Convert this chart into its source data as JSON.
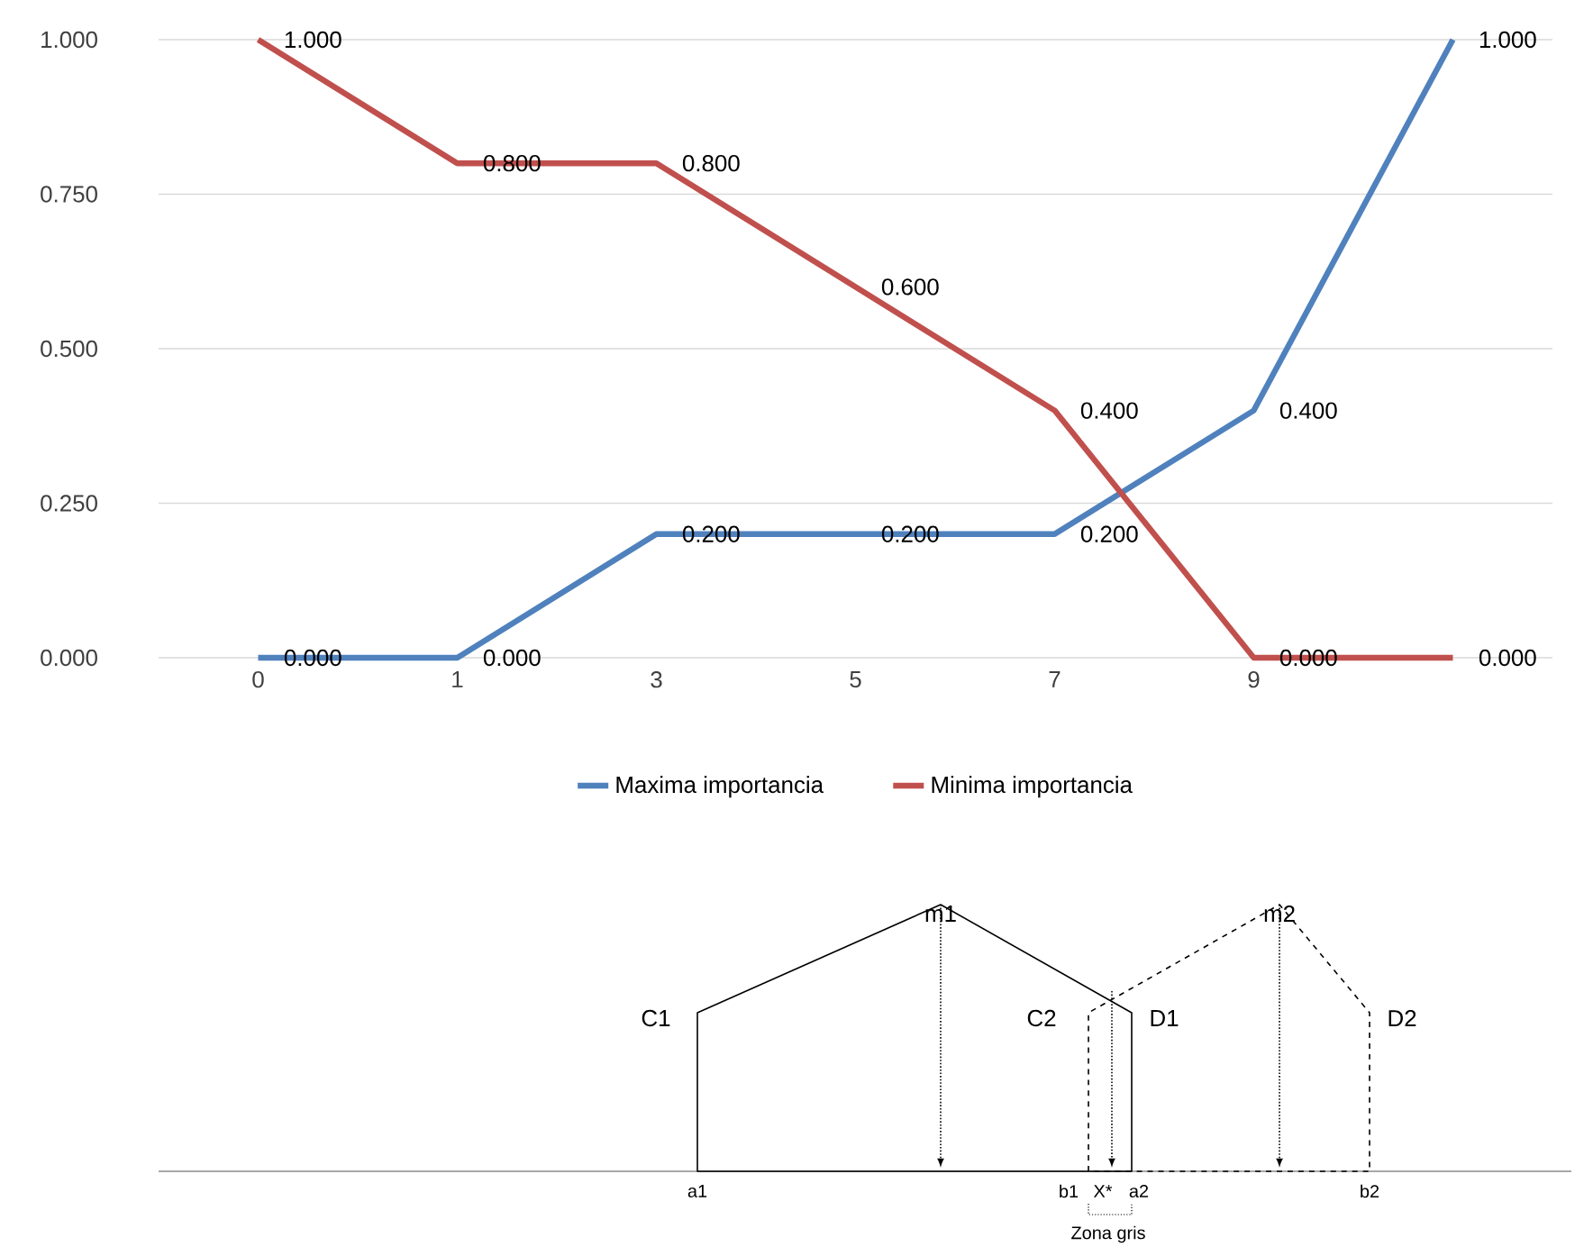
{
  "chart_data": [
    {
      "type": "line",
      "categories": [
        "0",
        "1",
        "3",
        "5",
        "7",
        "9",
        null
      ],
      "series": [
        {
          "name": "Maxima importancia",
          "color": "#4f81bd",
          "values": [
            0,
            0,
            0.2,
            0.2,
            0.2,
            0.4,
            1
          ],
          "value_labels": [
            "0.000",
            "0.000",
            "0.200",
            "0.200",
            "0.200",
            "0.400",
            "1.000"
          ]
        },
        {
          "name": "Minima importancia",
          "color": "#c0504d",
          "values": [
            1,
            0.8,
            0.8,
            0.6,
            0.4,
            0,
            0
          ],
          "value_labels": [
            "1.000",
            "0.800",
            "0.800",
            "0.600",
            "0.400",
            "0.000",
            "0.000"
          ]
        }
      ],
      "ylim": [
        0,
        1
      ],
      "yticks": [
        {
          "value": 0,
          "label": "0.000"
        },
        {
          "value": 0.25,
          "label": "0.250"
        },
        {
          "value": 0.5,
          "label": "0.500"
        },
        {
          "value": 0.75,
          "label": "0.750"
        },
        {
          "value": 1,
          "label": "1.000"
        }
      ],
      "grid": "y",
      "legend": "bottom"
    },
    {
      "type": "other",
      "annotations": [
        "m1",
        "m2",
        "C1",
        "C2",
        "D1",
        "D2",
        "a1",
        "b1",
        "X*",
        "a2",
        "b2",
        "Zona gris"
      ]
    }
  ]
}
